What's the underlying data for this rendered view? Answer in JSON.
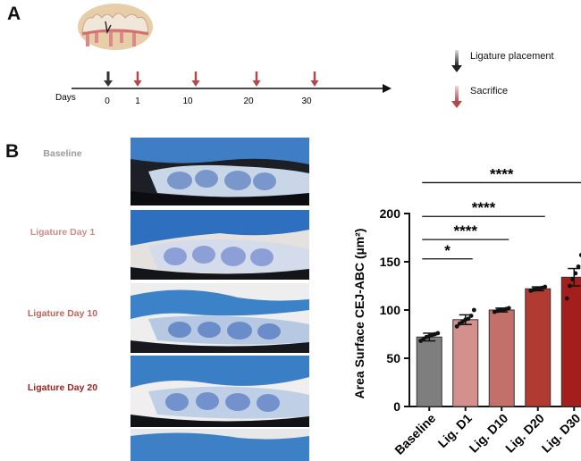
{
  "panel_a": {
    "letter": "A",
    "axis_label": "Days",
    "ticks": [
      "0",
      "1",
      "10",
      "20",
      "30"
    ],
    "legend": [
      {
        "label": "Ligature placement",
        "color": "#333333",
        "icon": "arrow-down-icon"
      },
      {
        "label": "Sacrifice",
        "color": "#b4474a",
        "icon": "arrow-down-icon"
      }
    ]
  },
  "panel_b": {
    "letter": "B",
    "photo_labels": [
      {
        "text": "Baseline",
        "color": "#9a9a9a"
      },
      {
        "text": "Ligature Day 1",
        "color": "#d48a86"
      },
      {
        "text": "Ligature Day 10",
        "color": "#c0645e"
      },
      {
        "text": "Ligature Day 20",
        "color": "#9c2222"
      }
    ]
  },
  "chart_data": {
    "type": "bar",
    "categories": [
      "Baseline",
      "Lig. D1",
      "Lig. D10",
      "Lig. D20",
      "Lig. D30"
    ],
    "values": [
      72,
      90,
      100,
      122,
      134
    ],
    "errors": [
      4,
      5,
      2,
      2,
      9
    ],
    "points": [
      [
        68,
        70,
        72,
        73,
        74,
        75,
        76
      ],
      [
        83,
        86,
        88,
        90,
        91,
        94,
        100
      ],
      [
        98,
        99,
        100,
        100,
        101,
        102
      ],
      [
        120,
        121,
        122,
        122,
        123,
        124
      ],
      [
        112,
        125,
        132,
        138,
        145,
        157
      ]
    ],
    "colors": [
      "#7e7e7e",
      "#d4908c",
      "#c4706a",
      "#b13a33",
      "#a51e1e"
    ],
    "ylabel": "Area Surface CEJ-ABC (µm²)",
    "ylim": [
      0,
      200
    ],
    "yticks": [
      0,
      50,
      100,
      150,
      200
    ],
    "significance": [
      {
        "from": 0,
        "to": 1,
        "label": "*"
      },
      {
        "from": 0,
        "to": 2,
        "label": "****"
      },
      {
        "from": 0,
        "to": 3,
        "label": "****"
      },
      {
        "from": 0,
        "to": 4,
        "label": "****"
      }
    ]
  }
}
